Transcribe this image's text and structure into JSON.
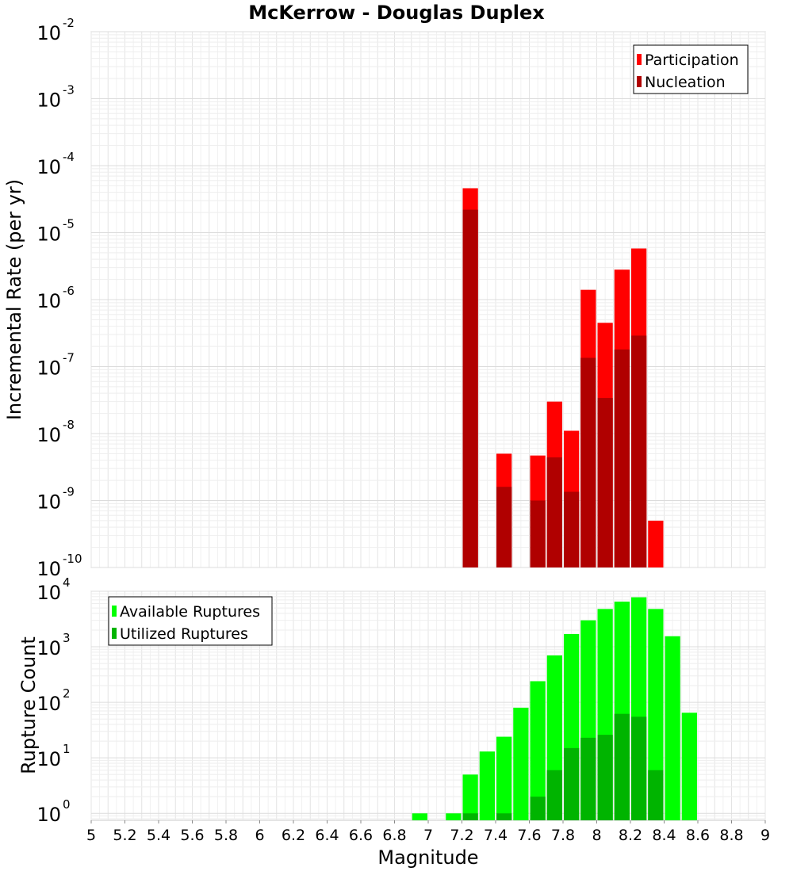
{
  "chart_data": [
    {
      "type": "bar",
      "title": "McKerrow - Douglas Duplex",
      "xlabel": "",
      "ylabel": "Incremental Rate (per yr)",
      "y_scale": "log",
      "ylim": [
        1e-10,
        0.01
      ],
      "xlim": [
        5,
        9
      ],
      "y_ticks": [
        {
          "base": "10",
          "exp": "-10"
        },
        {
          "base": "10",
          "exp": "-9"
        },
        {
          "base": "10",
          "exp": "-8"
        },
        {
          "base": "10",
          "exp": "-7"
        },
        {
          "base": "10",
          "exp": "-6"
        },
        {
          "base": "10",
          "exp": "-5"
        },
        {
          "base": "10",
          "exp": "-4"
        },
        {
          "base": "10",
          "exp": "-3"
        },
        {
          "base": "10",
          "exp": "-2"
        }
      ],
      "legend": {
        "position": "top-right"
      },
      "grid": true,
      "series": [
        {
          "name": "Participation",
          "color": "#ff0000",
          "x": [
            7.25,
            7.45,
            7.65,
            7.75,
            7.85,
            7.95,
            8.05,
            8.15,
            8.25,
            8.35
          ],
          "values": [
            4.6e-05,
            5e-09,
            4.7e-09,
            3e-08,
            1.1e-08,
            1.4e-06,
            4.5e-07,
            2.8e-06,
            5.8e-06,
            5e-10
          ]
        },
        {
          "name": "Nucleation",
          "color": "#b00000",
          "x": [
            7.25,
            7.45,
            7.65,
            7.75,
            7.85,
            7.95,
            8.05,
            8.15,
            8.25
          ],
          "values": [
            2.2e-05,
            1.6e-09,
            1e-09,
            4.4e-09,
            1.35e-09,
            1.35e-07,
            3.4e-08,
            1.8e-07,
            2.9e-07
          ]
        }
      ]
    },
    {
      "type": "bar",
      "title": "",
      "xlabel": "Magnitude",
      "ylabel": "Rupture Count",
      "y_scale": "log",
      "ylim": [
        0.75,
        10000
      ],
      "xlim": [
        5,
        9
      ],
      "x_ticks": [
        "5",
        "5.2",
        "5.4",
        "5.6",
        "5.8",
        "6",
        "6.2",
        "6.4",
        "6.6",
        "6.8",
        "7",
        "7.2",
        "7.4",
        "7.6",
        "7.8",
        "8",
        "8.2",
        "8.4",
        "8.6",
        "8.8",
        "9"
      ],
      "y_ticks": [
        {
          "base": "10",
          "exp": "0"
        },
        {
          "base": "10",
          "exp": "1"
        },
        {
          "base": "10",
          "exp": "2"
        },
        {
          "base": "10",
          "exp": "3"
        },
        {
          "base": "10",
          "exp": "4"
        }
      ],
      "legend": {
        "position": "top-left"
      },
      "grid": true,
      "series": [
        {
          "name": "Available Ruptures",
          "color": "#00ff00",
          "x": [
            6.95,
            7.15,
            7.25,
            7.35,
            7.45,
            7.55,
            7.65,
            7.75,
            7.85,
            7.95,
            8.05,
            8.15,
            8.25,
            8.35,
            8.45,
            8.55
          ],
          "values": [
            1,
            1,
            5,
            13,
            24,
            80,
            240,
            700,
            1700,
            3000,
            4800,
            6500,
            7800,
            4800,
            1550,
            65
          ]
        },
        {
          "name": "Utilized Ruptures",
          "color": "#00b400",
          "x": [
            7.25,
            7.45,
            7.65,
            7.75,
            7.85,
            7.95,
            8.05,
            8.15,
            8.25,
            8.35
          ],
          "values": [
            1,
            1,
            2,
            6,
            15,
            23,
            26,
            62,
            55,
            6
          ]
        }
      ]
    }
  ]
}
